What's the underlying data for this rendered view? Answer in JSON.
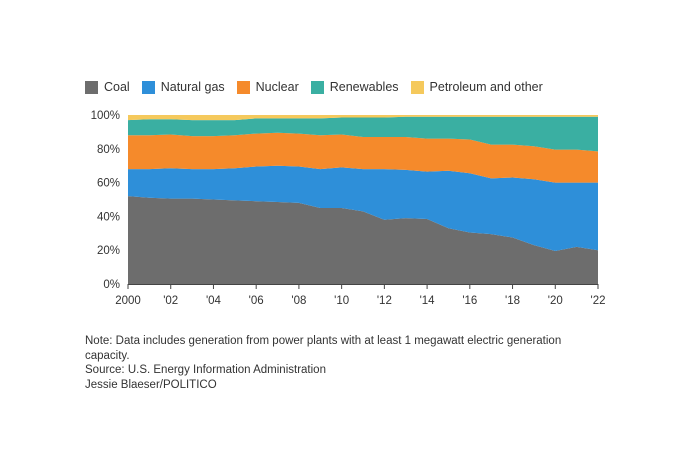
{
  "chart_data": {
    "type": "area",
    "stacked": true,
    "normalized": true,
    "x": [
      "2000",
      "2001",
      "2002",
      "2003",
      "2004",
      "2005",
      "2006",
      "2007",
      "2008",
      "2009",
      "2010",
      "2011",
      "2012",
      "2013",
      "2014",
      "2015",
      "2016",
      "2017",
      "2018",
      "2019",
      "2020",
      "2021",
      "2022"
    ],
    "xticks": [
      "2000",
      "'02",
      "'04",
      "'06",
      "'08",
      "'10",
      "'12",
      "'14",
      "'16",
      "'18",
      "'20",
      "'22"
    ],
    "yticks": [
      "0%",
      "20%",
      "40%",
      "60%",
      "80%",
      "100%"
    ],
    "ylim": [
      0,
      100
    ],
    "legend_position": "top-left",
    "series": [
      {
        "name": "Coal",
        "color": "#6d6d6d",
        "values": [
          52,
          51,
          50.5,
          50.5,
          50,
          49.5,
          49,
          48.5,
          48,
          45,
          45,
          43,
          38,
          39,
          38.5,
          33,
          30.5,
          29.5,
          27.5,
          23,
          19.5,
          22,
          20
        ]
      },
      {
        "name": "Natural gas",
        "color": "#2e8fd9",
        "values": [
          16,
          17,
          18,
          17.5,
          18,
          19,
          20.5,
          21.5,
          21.5,
          23,
          24,
          25,
          30,
          28.5,
          28,
          34,
          35,
          33,
          35.5,
          39,
          40.5,
          38,
          40
        ]
      },
      {
        "name": "Nuclear",
        "color": "#f58a2b",
        "values": [
          20,
          20,
          20,
          19.5,
          19.5,
          19.5,
          19.5,
          19.5,
          19.5,
          20,
          19.5,
          19,
          19,
          19.5,
          19.5,
          19,
          20,
          20,
          19.5,
          19.5,
          19.5,
          19.5,
          18.5
        ]
      },
      {
        "name": "Renewables",
        "color": "#3aafa2",
        "values": [
          9,
          9.5,
          9,
          9.5,
          9.5,
          9,
          9,
          8.5,
          9,
          10,
          10,
          11.5,
          11.5,
          12,
          13,
          13,
          13.5,
          16.5,
          16.5,
          17.5,
          19.5,
          19.5,
          20.5
        ]
      },
      {
        "name": "Petroleum and other",
        "color": "#f5c95c",
        "values": [
          3,
          2.5,
          2.5,
          3,
          3,
          3,
          2,
          2,
          2,
          2,
          1.5,
          1.5,
          1.5,
          1,
          1,
          1,
          1,
          1,
          1,
          1,
          1,
          1,
          1
        ]
      }
    ]
  },
  "notes": {
    "note": "Note: Data includes generation from power plants with at least 1 megawatt electric generation capacity.",
    "source": "Source: U.S. Energy Information Administration",
    "credit": "Jessie Blaeser/POLITICO"
  }
}
